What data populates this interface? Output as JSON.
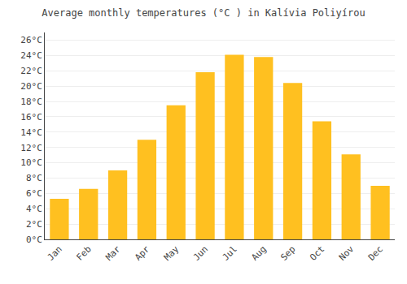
{
  "chart_data": {
    "type": "bar",
    "title": "Average monthly temperatures (°C ) in Kalívia Poliyírou",
    "categories": [
      "Jan",
      "Feb",
      "Mar",
      "Apr",
      "May",
      "Jun",
      "Jul",
      "Aug",
      "Sep",
      "Oct",
      "Nov",
      "Dec"
    ],
    "values": [
      5.3,
      6.6,
      9.0,
      13.0,
      17.5,
      21.8,
      24.1,
      23.8,
      20.4,
      15.4,
      11.1,
      7.0
    ],
    "color": "#FFC020",
    "ylim": [
      0,
      27
    ],
    "yticks": [
      {
        "value": 0,
        "label": "0°C"
      },
      {
        "value": 2,
        "label": "2°C"
      },
      {
        "value": 4,
        "label": "4°C"
      },
      {
        "value": 6,
        "label": "6°C"
      },
      {
        "value": 8,
        "label": "8°C"
      },
      {
        "value": 10,
        "label": "10°C"
      },
      {
        "value": 12,
        "label": "12°C"
      },
      {
        "value": 14,
        "label": "14°C"
      },
      {
        "value": 16,
        "label": "16°C"
      },
      {
        "value": 18,
        "label": "18°C"
      },
      {
        "value": 20,
        "label": "20°C"
      },
      {
        "value": 22,
        "label": "22°C"
      },
      {
        "value": 24,
        "label": "24°C"
      },
      {
        "value": 26,
        "label": "26°C"
      }
    ],
    "grid": true
  }
}
